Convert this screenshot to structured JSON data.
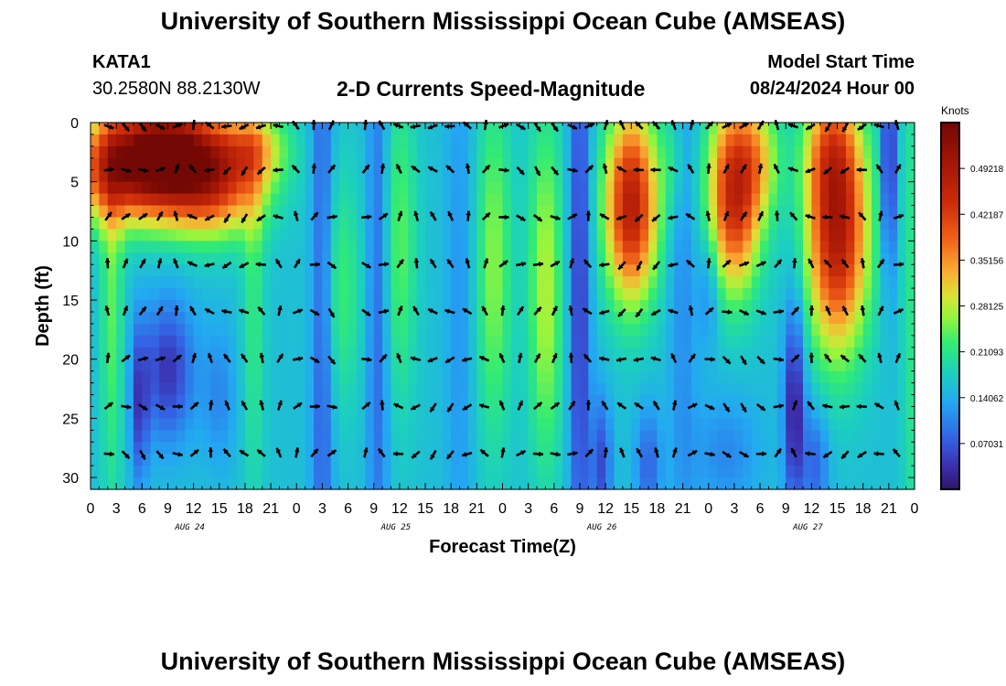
{
  "header": {
    "title": "University of Southern Mississippi Ocean Cube (AMSEAS)",
    "station": "KATA1",
    "coordinates": "30.2580N  88.2130W",
    "subtitle": "2-D Currents Speed-Magnitude",
    "model_start_label": "Model Start Time",
    "model_start_value": "08/24/2024 Hour 00"
  },
  "footer": {
    "title": "University of Southern Mississippi Ocean Cube (AMSEAS)"
  },
  "chart_data": {
    "type": "heatmap",
    "xlabel": "Forecast Time(Z)",
    "ylabel": "Depth (ft)",
    "x_range": [
      0,
      96
    ],
    "y_range": [
      0,
      31
    ],
    "x_tick_labels": [
      "0",
      "3",
      "6",
      "9",
      "12",
      "15",
      "18",
      "21",
      "0",
      "3",
      "6",
      "9",
      "12",
      "15",
      "18",
      "21",
      "0",
      "3",
      "6",
      "9",
      "12",
      "15",
      "18",
      "21",
      "0",
      "3",
      "6",
      "9",
      "12",
      "15",
      "18",
      "21",
      "0"
    ],
    "y_ticks": [
      0,
      5,
      10,
      15,
      20,
      25,
      30
    ],
    "day_labels": [
      {
        "label": "AUG 24",
        "hour": 12
      },
      {
        "label": "AUG 25",
        "hour": 36
      },
      {
        "label": "AUG 26",
        "hour": 60
      },
      {
        "label": "AUG 27",
        "hour": 84
      }
    ],
    "colorbar": {
      "label": "Knots",
      "range": [
        0,
        0.5625
      ],
      "ticks": [
        0.07031,
        0.14062,
        0.21093,
        0.28125,
        0.35156,
        0.42187,
        0.49218
      ],
      "tick_labels": [
        "0.07031",
        "0.14062",
        "0.21093",
        "0.28125",
        "0.35156",
        "0.42187",
        "0.49218"
      ]
    },
    "features": [
      {
        "h": 4,
        "d": 4,
        "sh": 7,
        "sd": 4.5,
        "a": 0.28
      },
      {
        "h": 9,
        "d": 2,
        "sh": 6,
        "sd": 4,
        "a": 0.26
      },
      {
        "h": 14,
        "d": 5,
        "sh": 6,
        "sd": 4.5,
        "a": 0.26
      },
      {
        "h": 19,
        "d": 2,
        "sh": 4,
        "sd": 3,
        "a": 0.12
      },
      {
        "h": 9,
        "d": 21,
        "sh": 3,
        "sd": 6,
        "a": -0.12
      },
      {
        "h": 5.7,
        "d": 24,
        "sh": 1,
        "sd": 7,
        "a": -0.1
      },
      {
        "h": 15,
        "d": 23,
        "sh": 2,
        "sd": 6,
        "a": -0.05
      },
      {
        "h": 2.5,
        "d": 15,
        "sh": 1.3,
        "sd": 18,
        "a": 0.08
      },
      {
        "h": 19,
        "d": 15,
        "sh": 1.3,
        "sd": 18,
        "a": 0.06
      },
      {
        "h": 27,
        "d": 15,
        "sh": 1.3,
        "sd": 30,
        "a": -0.1
      },
      {
        "h": 29,
        "d": 14,
        "sh": 2.5,
        "sd": 10,
        "a": 0.07
      },
      {
        "h": 33.5,
        "d": 15,
        "sh": 1.3,
        "sd": 30,
        "a": -0.08
      },
      {
        "h": 36,
        "d": 10,
        "sh": 2,
        "sd": 14,
        "a": 0.08
      },
      {
        "h": 43,
        "d": 15,
        "sh": 1.6,
        "sd": 30,
        "a": -0.04
      },
      {
        "h": 47,
        "d": 12,
        "sh": 2,
        "sd": 15,
        "a": 0.1
      },
      {
        "h": 53,
        "d": 14,
        "sh": 2,
        "sd": 15,
        "a": 0.12
      },
      {
        "h": 57,
        "d": 14,
        "sh": 1.2,
        "sd": 30,
        "a": -0.12
      },
      {
        "h": 63,
        "d": 7,
        "sh": 3,
        "sd": 8,
        "a": 0.32
      },
      {
        "h": 59.5,
        "d": 29,
        "sh": 1.2,
        "sd": 6,
        "a": -0.1
      },
      {
        "h": 65,
        "d": 29,
        "sh": 1.5,
        "sd": 5,
        "a": -0.08
      },
      {
        "h": 68,
        "d": 3,
        "sh": 1.5,
        "sd": 5,
        "a": 0.05
      },
      {
        "h": 69,
        "d": 10,
        "sh": 1.6,
        "sd": 30,
        "a": -0.05
      },
      {
        "h": 72,
        "d": 14,
        "sh": 1.3,
        "sd": 5,
        "a": -0.06
      },
      {
        "h": 75,
        "d": 6,
        "sh": 3,
        "sd": 8,
        "a": 0.3
      },
      {
        "h": 78,
        "d": 3,
        "sh": 2.5,
        "sd": 5,
        "a": 0.1
      },
      {
        "h": 74,
        "d": 28,
        "sh": 4,
        "sd": 5,
        "a": -0.05
      },
      {
        "h": 82,
        "d": 24,
        "sh": 1.2,
        "sd": 9,
        "a": -0.15
      },
      {
        "h": 87,
        "d": 9,
        "sh": 3.5,
        "sd": 10,
        "a": 0.33
      },
      {
        "h": 86,
        "d": 2,
        "sh": 3,
        "sd": 5,
        "a": 0.1
      },
      {
        "h": 84.5,
        "d": 29,
        "sh": 1.5,
        "sd": 5,
        "a": -0.08
      },
      {
        "h": 93,
        "d": 3,
        "sh": 0.8,
        "sd": 10,
        "a": -0.15
      },
      {
        "h": 95.5,
        "d": 15,
        "sh": 1,
        "sd": 30,
        "a": 0.05
      }
    ],
    "arrow_depths": [
      0,
      4,
      8,
      12,
      16,
      20,
      24,
      28
    ],
    "arrow_hours": [
      2,
      4,
      6,
      8,
      10,
      12,
      14,
      16,
      18,
      20,
      22,
      24,
      26,
      28,
      32,
      34,
      36,
      38,
      40,
      42,
      44,
      46,
      48,
      50,
      52,
      54,
      56,
      58,
      60,
      62,
      64,
      66,
      68,
      70,
      72,
      74,
      76,
      78,
      80,
      82,
      84,
      86,
      88,
      90,
      92,
      94
    ]
  }
}
